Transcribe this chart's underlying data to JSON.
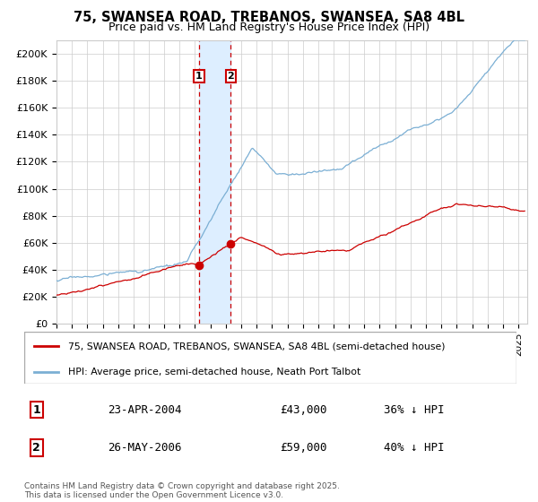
{
  "title1": "75, SWANSEA ROAD, TREBANOS, SWANSEA, SA8 4BL",
  "title2": "Price paid vs. HM Land Registry's House Price Index (HPI)",
  "ylim": [
    0,
    210000
  ],
  "yticks": [
    0,
    20000,
    40000,
    60000,
    80000,
    100000,
    120000,
    140000,
    160000,
    180000,
    200000
  ],
  "ytick_labels": [
    "£0",
    "£20K",
    "£40K",
    "£60K",
    "£80K",
    "£100K",
    "£120K",
    "£140K",
    "£160K",
    "£180K",
    "£200K"
  ],
  "hpi_color": "#7bafd4",
  "price_color": "#cc0000",
  "sale1_year": 2004,
  "sale1_month": 4,
  "sale1_price": 43000,
  "sale1_label": "1",
  "sale2_year": 2006,
  "sale2_month": 5,
  "sale2_price": 59000,
  "sale2_label": "2",
  "legend_red": "75, SWANSEA ROAD, TREBANOS, SWANSEA, SA8 4BL (semi-detached house)",
  "legend_blue": "HPI: Average price, semi-detached house, Neath Port Talbot",
  "table_row1": [
    "1",
    "23-APR-2004",
    "£43,000",
    "36% ↓ HPI"
  ],
  "table_row2": [
    "2",
    "26-MAY-2006",
    "£59,000",
    "40% ↓ HPI"
  ],
  "footnote": "Contains HM Land Registry data © Crown copyright and database right 2025.\nThis data is licensed under the Open Government Licence v3.0.",
  "background_color": "#ffffff",
  "grid_color": "#cccccc",
  "shade_color": "#ddeeff",
  "box_color": "#cc0000"
}
